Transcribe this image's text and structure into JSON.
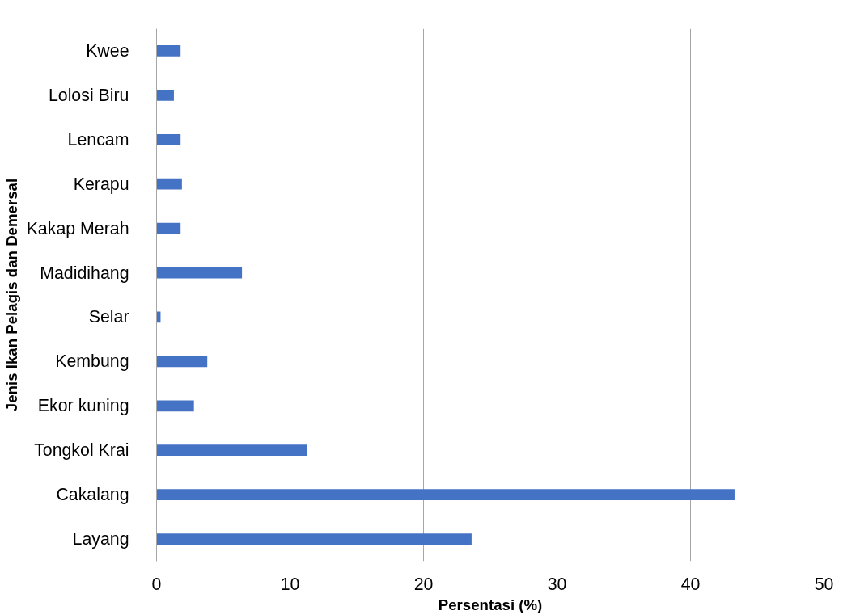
{
  "chart_data": {
    "type": "bar",
    "orientation": "horizontal",
    "xlabel": "Persentasi (%)",
    "ylabel": "Jenis Ikan Pelagis dan Demersal",
    "categories": [
      "Kwee",
      "Lolosi Biru",
      "Lencam",
      "Kerapu",
      "Kakap Merah",
      "Madidihang",
      "Selar",
      "Kembung",
      "Ekor kuning",
      "Tongkol Krai",
      "Cakalang",
      "Layang"
    ],
    "values": [
      1.8,
      1.3,
      1.8,
      1.9,
      1.8,
      6.4,
      0.3,
      3.8,
      2.8,
      11.3,
      43.3,
      23.6
    ],
    "color": "#4472c4",
    "xlim": [
      0,
      50
    ],
    "xticks": [
      0,
      10,
      20,
      30,
      40,
      50
    ],
    "grid": "x"
  }
}
